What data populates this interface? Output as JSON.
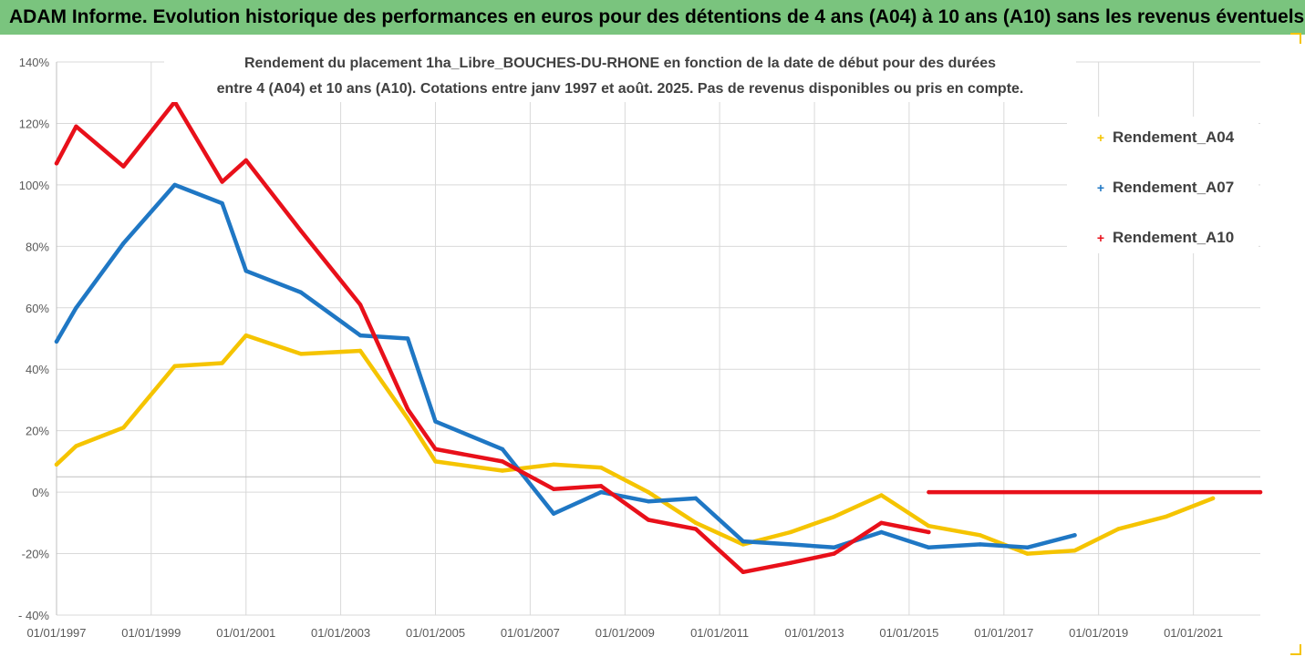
{
  "banner": {
    "text": "ADAM Informe. Evolution historique des performances en euros pour des détentions de 4 ans (A04) à 10 ans (A10) sans les revenus éventuels"
  },
  "colors": {
    "banner_bg": "#7ac47e",
    "A04": "#f5c400",
    "A07": "#1f77c4",
    "A10": "#e8101a",
    "grid": "#d9d9d9"
  },
  "chart_data": {
    "type": "line",
    "title_line1": "Rendement du placement 1ha_Libre_BOUCHES-DU-RHONE en fonction de la date de début pour des durées",
    "title_line2": "entre 4 (A04) et 10 ans (A10). Cotations entre janv 1997 et août. 2025. Pas de revenus disponibles ou pris en compte.",
    "x_axis": {
      "type": "date",
      "min": "1997-01-01",
      "max": "2022-06-01",
      "tick_labels": [
        "01/01/1997",
        "01/01/1999",
        "01/01/2001",
        "01/01/2003",
        "01/01/2005",
        "01/01/2007",
        "01/01/2009",
        "01/01/2011",
        "01/01/2013",
        "01/01/2015",
        "01/01/2017",
        "01/01/2019",
        "01/01/2021"
      ]
    },
    "y_axis": {
      "min": -40,
      "max": 140,
      "step": 20,
      "unit": "%",
      "tick_labels": [
        "- 40%",
        "-20%",
        "0%",
        "20%",
        "40%",
        "60%",
        "80%",
        "100%",
        "120%",
        "140%"
      ]
    },
    "grid": true,
    "legend_position": "right",
    "series": [
      {
        "name": "Rendement_A04",
        "color_key": "A04",
        "points": [
          [
            "1997-01-01",
            9
          ],
          [
            "1997-06-01",
            15
          ],
          [
            "1998-06-01",
            21
          ],
          [
            "1999-07-01",
            41
          ],
          [
            "2000-07-01",
            42
          ],
          [
            "2001-01-01",
            51
          ],
          [
            "2002-03-01",
            45
          ],
          [
            "2003-06-01",
            46
          ],
          [
            "2004-06-01",
            24
          ],
          [
            "2005-01-01",
            10
          ],
          [
            "2006-06-01",
            7
          ],
          [
            "2007-07-01",
            9
          ],
          [
            "2008-07-01",
            8
          ],
          [
            "2009-07-01",
            0
          ],
          [
            "2010-07-01",
            -10
          ],
          [
            "2011-07-01",
            -17
          ],
          [
            "2012-07-01",
            -13
          ],
          [
            "2013-06-01",
            -8
          ],
          [
            "2014-06-01",
            -1
          ],
          [
            "2015-06-01",
            -11
          ],
          [
            "2016-07-01",
            -14
          ],
          [
            "2017-07-01",
            -20
          ],
          [
            "2018-07-01",
            -19
          ],
          [
            "2019-06-01",
            -12
          ],
          [
            "2020-06-01",
            -8
          ],
          [
            "2021-06-01",
            -2
          ]
        ]
      },
      {
        "name": "Rendement_A07",
        "color_key": "A07",
        "points": [
          [
            "1997-01-01",
            49
          ],
          [
            "1997-06-01",
            60
          ],
          [
            "1998-06-01",
            81
          ],
          [
            "1999-07-01",
            100
          ],
          [
            "2000-07-01",
            94
          ],
          [
            "2001-01-01",
            72
          ],
          [
            "2002-03-01",
            65
          ],
          [
            "2003-06-01",
            51
          ],
          [
            "2004-06-01",
            50
          ],
          [
            "2005-01-01",
            23
          ],
          [
            "2006-06-01",
            14
          ],
          [
            "2007-07-01",
            -7
          ],
          [
            "2008-07-01",
            0
          ],
          [
            "2009-07-01",
            -3
          ],
          [
            "2010-07-01",
            -2
          ],
          [
            "2011-07-01",
            -16
          ],
          [
            "2012-07-01",
            -17
          ],
          [
            "2013-06-01",
            -18
          ],
          [
            "2014-06-01",
            -13
          ],
          [
            "2015-06-01",
            -18
          ],
          [
            "2016-07-01",
            -17
          ],
          [
            "2017-07-01",
            -18
          ],
          [
            "2018-07-01",
            -14
          ]
        ]
      },
      {
        "name": "Rendement_A10",
        "color_key": "A10",
        "points": [
          [
            "1997-01-01",
            107
          ],
          [
            "1997-06-01",
            119
          ],
          [
            "1998-06-01",
            106
          ],
          [
            "1999-07-01",
            127
          ],
          [
            "2000-07-01",
            101
          ],
          [
            "2001-01-01",
            108
          ],
          [
            "2002-03-01",
            85
          ],
          [
            "2003-06-01",
            61
          ],
          [
            "2004-06-01",
            27
          ],
          [
            "2005-01-01",
            14
          ],
          [
            "2006-06-01",
            10
          ],
          [
            "2007-07-01",
            1
          ],
          [
            "2008-07-01",
            2
          ],
          [
            "2009-07-01",
            -9
          ],
          [
            "2010-07-01",
            -12
          ],
          [
            "2011-07-01",
            -26
          ],
          [
            "2012-07-01",
            -23
          ],
          [
            "2013-06-01",
            -20
          ],
          [
            "2014-06-01",
            -10
          ],
          [
            "2015-06-01",
            -13
          ],
          [
            "2015-06-02",
            0
          ],
          [
            "2022-06-01",
            0
          ]
        ],
        "break_after_index": 19
      }
    ]
  }
}
